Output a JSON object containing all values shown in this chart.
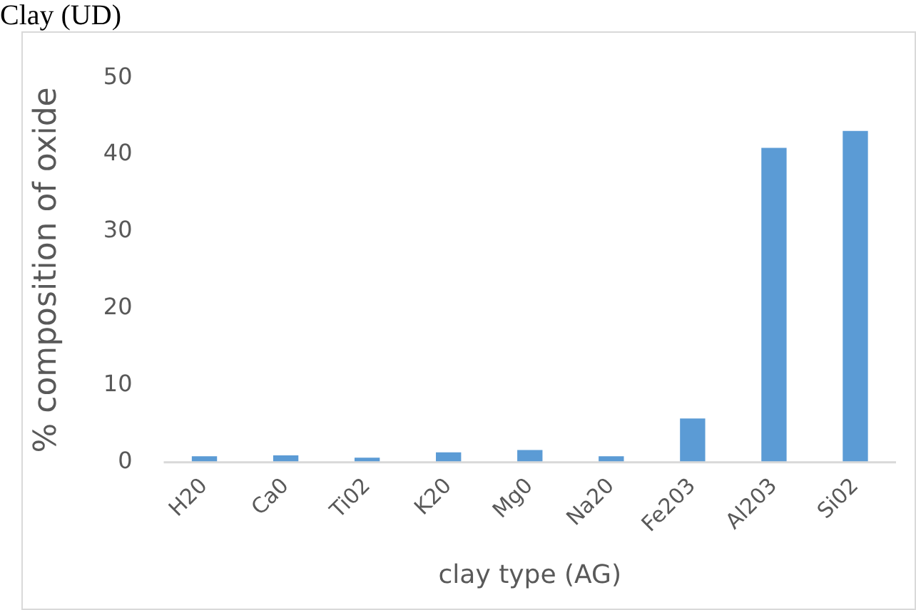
{
  "chart_data": {
    "type": "bar",
    "xlabel": "clay type (AG)",
    "ylabel": "% composition of oxide",
    "annotations": [
      "Clay (UD)"
    ],
    "categories": [
      "H20",
      "Ca0",
      "Ti02",
      "K20",
      "Mg0",
      "Na20",
      "Fe203",
      "Al203",
      "Si02"
    ],
    "values": [
      0.8,
      0.9,
      0.6,
      1.3,
      1.6,
      0.8,
      5.7,
      40.9,
      43.1
    ],
    "color": "#5b9bd5",
    "ylim": [
      0,
      50
    ],
    "yticks": [
      0,
      10,
      20,
      30,
      40,
      50
    ],
    "grid": false,
    "legend": false
  }
}
